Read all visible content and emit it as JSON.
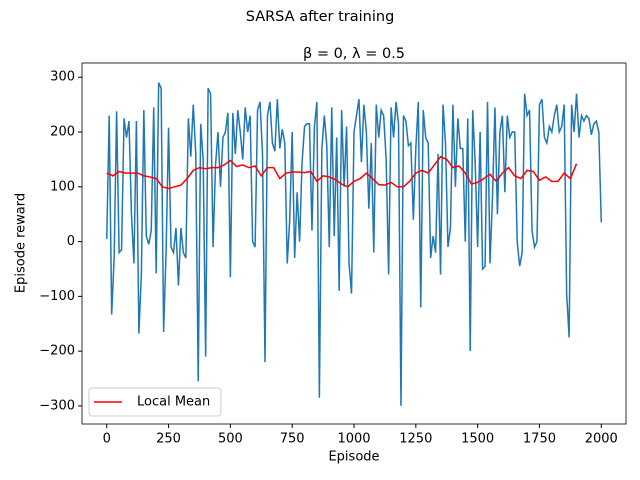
{
  "chart_data": {
    "type": "line",
    "suptitle": "SARSA after training",
    "title": "β = 0, λ = 0.5",
    "xlabel": "Episode",
    "ylabel": "Episode reward",
    "xlim": [
      -100,
      2100
    ],
    "ylim": [
      -333,
      326
    ],
    "xticks": [
      0,
      250,
      500,
      750,
      1000,
      1250,
      1500,
      1750,
      2000
    ],
    "yticks": [
      {
        "value": -300,
        "label": "−300"
      },
      {
        "value": -200,
        "label": "−200"
      },
      {
        "value": -100,
        "label": "−100"
      },
      0,
      100,
      200,
      300
    ],
    "legend": "lower left",
    "series": [
      {
        "color": "#1f77b4",
        "x": [
          0,
          10,
          20,
          30,
          40,
          50,
          60,
          70,
          80,
          90,
          100,
          110,
          120,
          130,
          140,
          150,
          160,
          170,
          180,
          190,
          200,
          210,
          220,
          230,
          240,
          250,
          260,
          270,
          280,
          290,
          300,
          310,
          320,
          330,
          340,
          350,
          360,
          370,
          380,
          390,
          400,
          410,
          420,
          430,
          440,
          450,
          460,
          470,
          480,
          490,
          500,
          510,
          520,
          530,
          540,
          550,
          560,
          570,
          580,
          590,
          600,
          610,
          620,
          630,
          640,
          650,
          660,
          670,
          680,
          690,
          700,
          710,
          720,
          730,
          740,
          750,
          760,
          770,
          780,
          790,
          800,
          810,
          820,
          830,
          840,
          850,
          860,
          870,
          880,
          890,
          900,
          910,
          920,
          930,
          940,
          950,
          960,
          970,
          980,
          990,
          1000,
          1010,
          1020,
          1030,
          1040,
          1050,
          1060,
          1070,
          1080,
          1090,
          1100,
          1110,
          1120,
          1130,
          1140,
          1150,
          1160,
          1170,
          1180,
          1190,
          1200,
          1210,
          1220,
          1230,
          1240,
          1250,
          1260,
          1270,
          1280,
          1290,
          1300,
          1310,
          1320,
          1330,
          1340,
          1350,
          1360,
          1370,
          1380,
          1390,
          1400,
          1410,
          1420,
          1430,
          1440,
          1450,
          1460,
          1470,
          1480,
          1490,
          1500,
          1510,
          1520,
          1530,
          1540,
          1550,
          1560,
          1570,
          1580,
          1590,
          1600,
          1610,
          1620,
          1630,
          1640,
          1650,
          1660,
          1670,
          1680,
          1690,
          1700,
          1710,
          1720,
          1730,
          1740,
          1750,
          1760,
          1770,
          1780,
          1790,
          1800,
          1810,
          1820,
          1830,
          1840,
          1850,
          1860,
          1870,
          1880,
          1890,
          1900,
          1910,
          1920,
          1930,
          1940,
          1950,
          1960,
          1970,
          1980,
          1990,
          2000
        ],
        "values": [
          5,
          230,
          -133,
          -30,
          238,
          -20,
          -15,
          225,
          190,
          220,
          50,
          -40,
          220,
          -168,
          -60,
          240,
          10,
          -5,
          20,
          245,
          -58,
          290,
          280,
          -165,
          -20,
          208,
          -10,
          -20,
          25,
          -80,
          25,
          -20,
          -30,
          225,
          155,
          250,
          160,
          -255,
          215,
          150,
          -210,
          280,
          270,
          -10,
          140,
          200,
          100,
          190,
          200,
          235,
          -65,
          235,
          160,
          240,
          200,
          150,
          245,
          200,
          230,
          0,
          -10,
          240,
          255,
          160,
          -220,
          230,
          255,
          180,
          165,
          260,
          170,
          205,
          180,
          -40,
          40,
          200,
          -30,
          90,
          0,
          145,
          210,
          215,
          215,
          20,
          210,
          255,
          -285,
          170,
          230,
          175,
          -10,
          245,
          10,
          190,
          -90,
          240,
          100,
          210,
          -40,
          -95,
          200,
          230,
          260,
          145,
          250,
          200,
          60,
          180,
          -20,
          250,
          190,
          240,
          230,
          150,
          -60,
          245,
          190,
          255,
          215,
          -300,
          230,
          220,
          175,
          180,
          40,
          170,
          255,
          -120,
          240,
          190,
          180,
          -30,
          10,
          -20,
          160,
          -60,
          250,
          180,
          -10,
          25,
          250,
          100,
          225,
          170,
          170,
          0,
          225,
          -200,
          240,
          145,
          -10,
          200,
          -50,
          -45,
          255,
          -40,
          80,
          245,
          50,
          200,
          230,
          90,
          230,
          190,
          200,
          200,
          0,
          -45,
          -20,
          270,
          230,
          240,
          20,
          -10,
          0,
          250,
          260,
          190,
          180,
          210,
          200,
          230,
          250,
          200,
          210,
          250,
          -95,
          -175,
          250,
          200,
          270,
          190,
          230,
          220,
          230,
          225,
          195,
          215,
          220,
          200,
          35
        ]
      },
      {
        "name": "Local Mean",
        "color": "#ff0000",
        "x": [
          0,
          25,
          50,
          75,
          100,
          125,
          150,
          175,
          200,
          225,
          250,
          275,
          300,
          325,
          350,
          375,
          400,
          425,
          450,
          475,
          500,
          525,
          550,
          575,
          600,
          625,
          650,
          675,
          700,
          725,
          750,
          775,
          800,
          825,
          850,
          875,
          900,
          925,
          950,
          975,
          1000,
          1025,
          1050,
          1075,
          1100,
          1125,
          1150,
          1175,
          1200,
          1225,
          1250,
          1275,
          1300,
          1325,
          1350,
          1375,
          1400,
          1425,
          1450,
          1475,
          1500,
          1525,
          1550,
          1575,
          1600,
          1625,
          1650,
          1675,
          1700,
          1725,
          1750,
          1775,
          1800,
          1825,
          1850,
          1875,
          1900
        ],
        "values": [
          125,
          120,
          128,
          125,
          125,
          125,
          120,
          118,
          115,
          100,
          97,
          100,
          103,
          115,
          130,
          135,
          133,
          135,
          135,
          140,
          148,
          137,
          140,
          135,
          138,
          120,
          135,
          135,
          115,
          125,
          127,
          127,
          126,
          128,
          110,
          120,
          118,
          113,
          105,
          100,
          110,
          115,
          125,
          115,
          104,
          103,
          108,
          100,
          100,
          110,
          125,
          130,
          125,
          140,
          155,
          150,
          135,
          138,
          125,
          105,
          108,
          115,
          123,
          110,
          125,
          135,
          120,
          115,
          130,
          128,
          112,
          118,
          110,
          110,
          125,
          115,
          142
        ]
      }
    ]
  }
}
